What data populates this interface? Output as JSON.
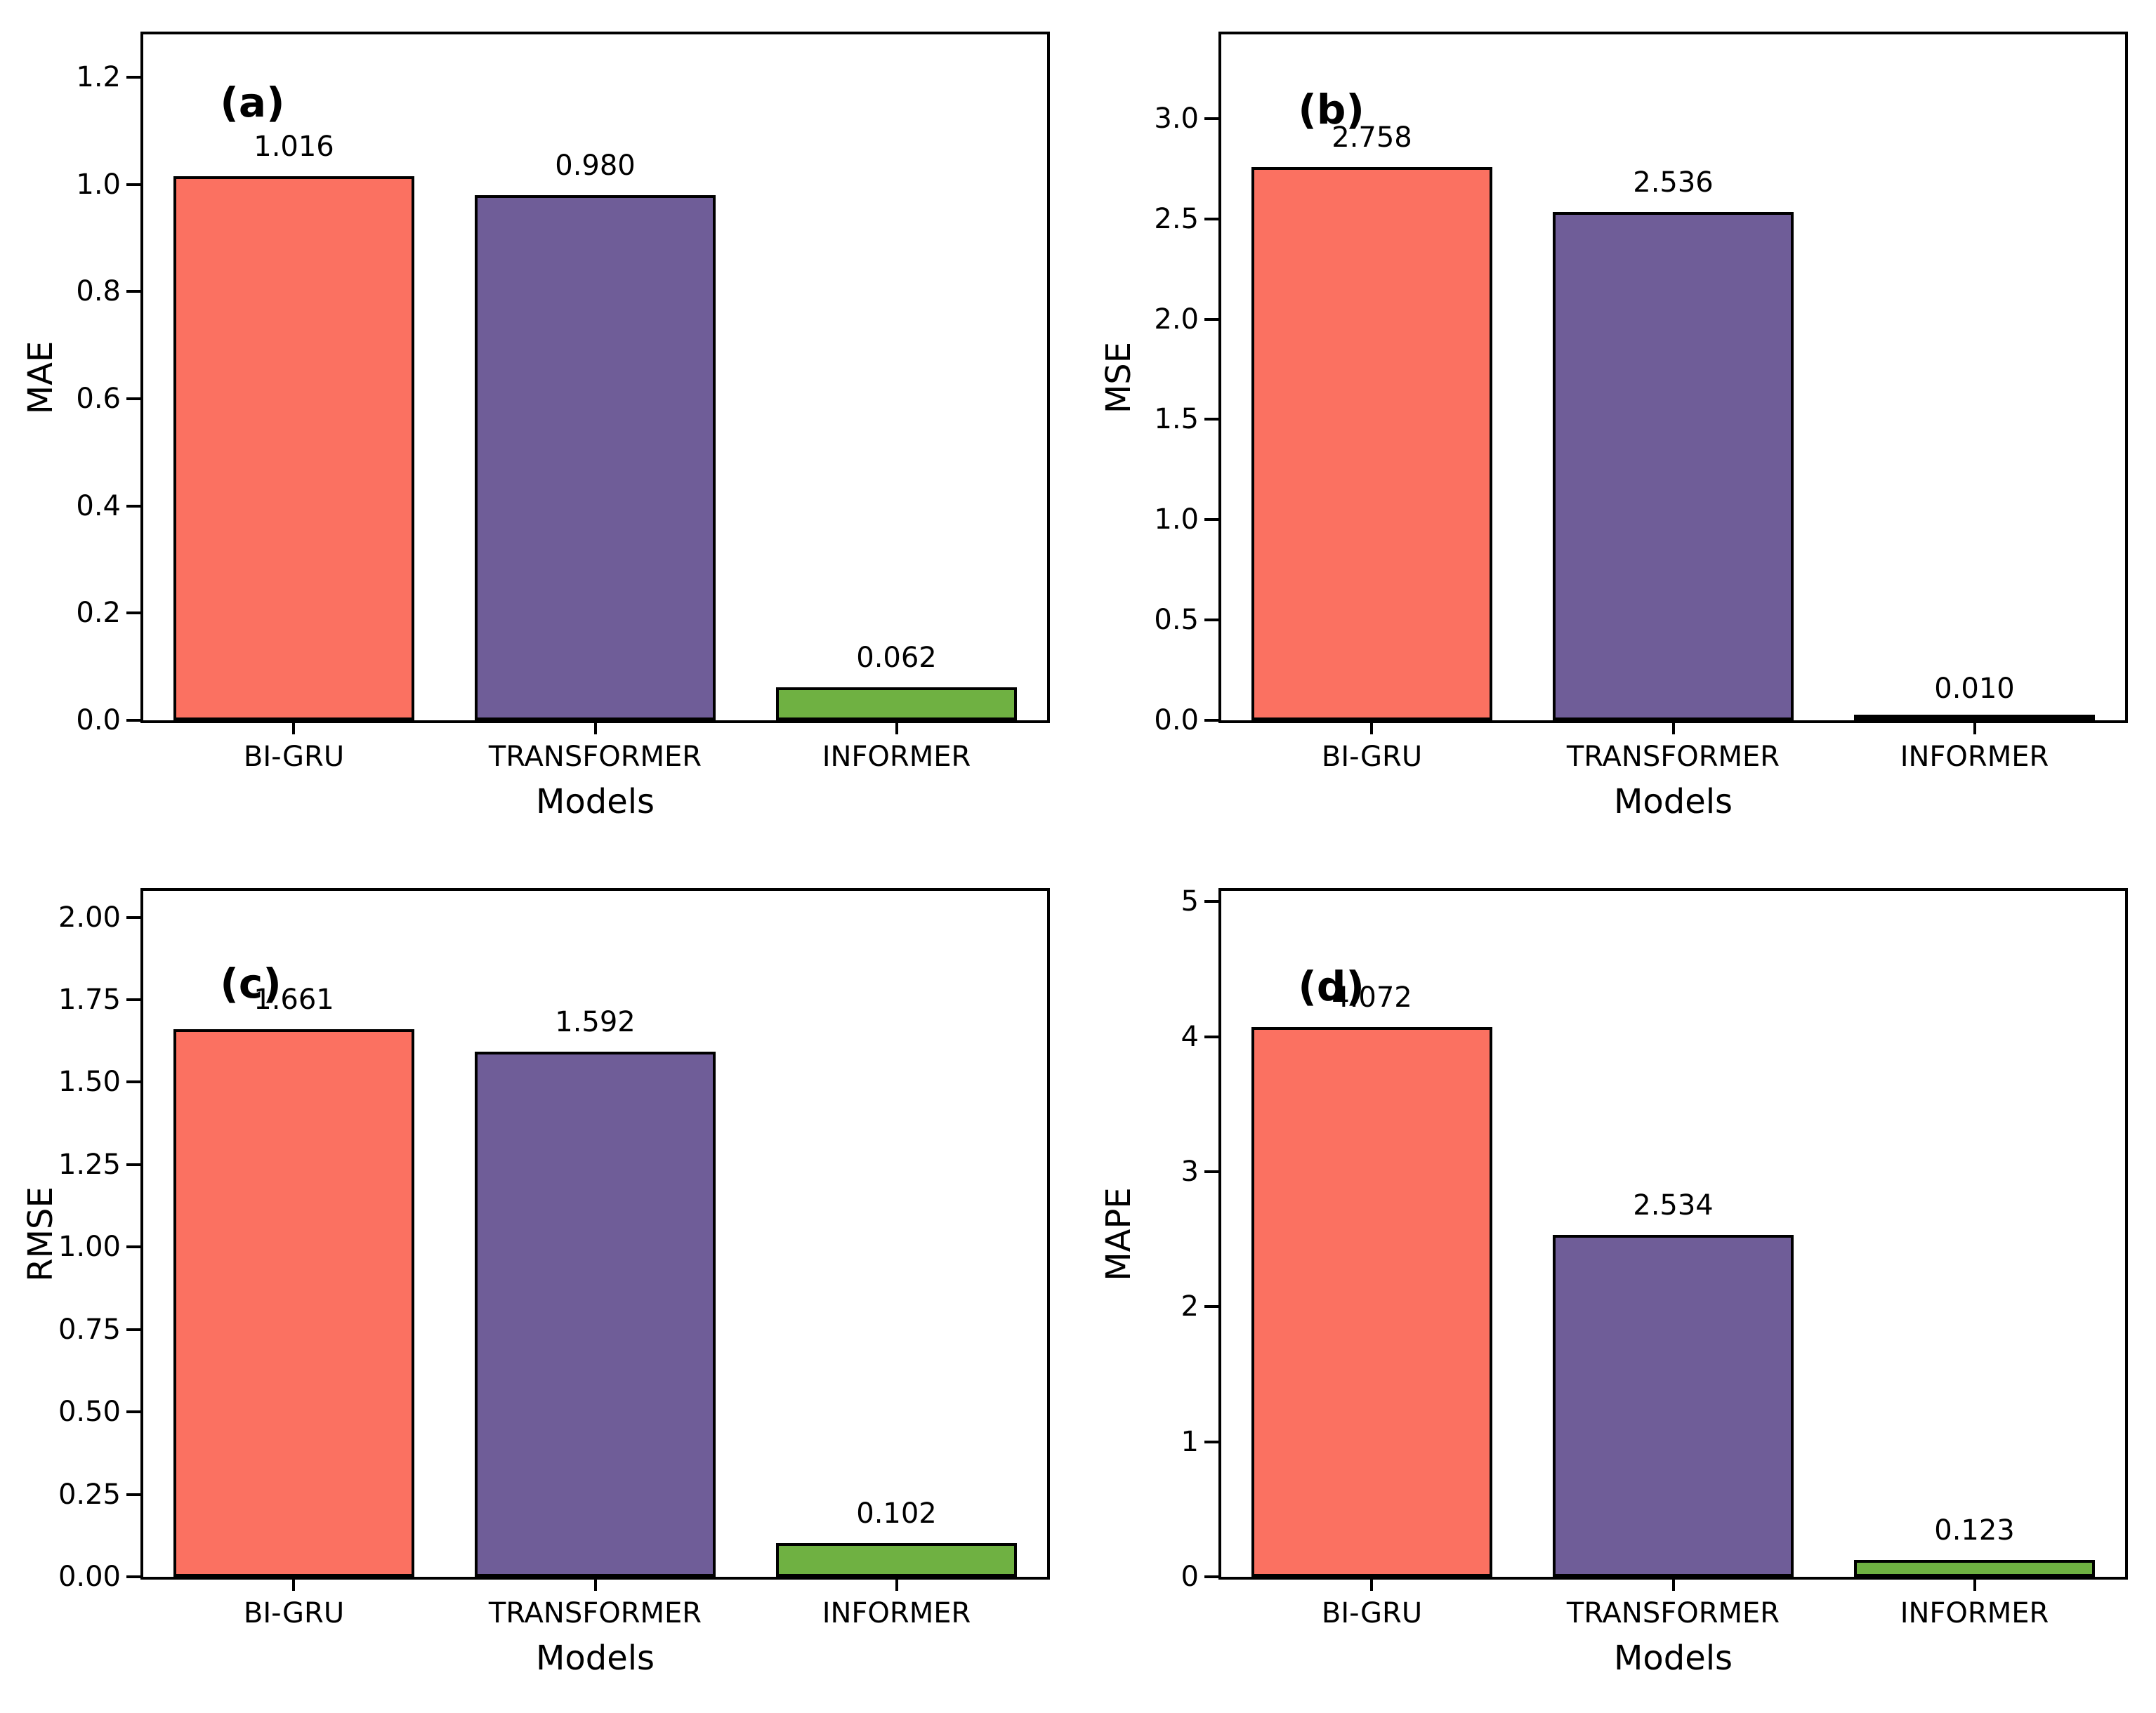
{
  "figure": {
    "background": "#ffffff",
    "description": "Model error metric comparison bar charts"
  },
  "colors": {
    "bi_gru_bar": "#FB7161",
    "transformer_bar": "#6F5D98",
    "informer_bar": "#6FB142",
    "bar_edge": "#000000",
    "text": "#000000"
  },
  "chart_data": [
    {
      "type": "bar",
      "panel_id": "a",
      "panel_label": "(a)",
      "ylabel": "MAE",
      "xlabel": "Models",
      "categories": [
        "BI-GRU",
        "TRANSFORMER",
        "INFORMER"
      ],
      "values": [
        1.016,
        0.98,
        0.062
      ],
      "value_labels": [
        "1.016",
        "0.980",
        "0.062"
      ],
      "bar_colors": [
        "#FB7161",
        "#6F5D98",
        "#6FB142"
      ],
      "ytick_labels": [
        "0.0",
        "0.2",
        "0.4",
        "0.6",
        "0.8",
        "1.0",
        "1.2"
      ],
      "ytick_values": [
        0.0,
        0.2,
        0.4,
        0.6,
        0.8,
        1.0,
        1.2
      ],
      "ylim": [
        0,
        1.28
      ],
      "grid": false,
      "legend": null,
      "annotation_pos": {
        "left_pct": 8.5,
        "top_pct": 7.0
      }
    },
    {
      "type": "bar",
      "panel_id": "b",
      "panel_label": "(b)",
      "ylabel": "MSE",
      "xlabel": "Models",
      "categories": [
        "BI-GRU",
        "TRANSFORMER",
        "INFORMER"
      ],
      "values": [
        2.758,
        2.536,
        0.01
      ],
      "value_labels": [
        "2.758",
        "2.536",
        "0.010"
      ],
      "bar_colors": [
        "#FB7161",
        "#6F5D98",
        "#6FB142"
      ],
      "ytick_labels": [
        "0.0",
        "0.5",
        "1.0",
        "1.5",
        "2.0",
        "2.5",
        "3.0"
      ],
      "ytick_values": [
        0.0,
        0.5,
        1.0,
        1.5,
        2.0,
        2.5,
        3.0
      ],
      "ylim": [
        0,
        3.42
      ],
      "grid": false,
      "legend": null,
      "annotation_pos": {
        "left_pct": 8.5,
        "top_pct": 8.0
      }
    },
    {
      "type": "bar",
      "panel_id": "c",
      "panel_label": "(c)",
      "ylabel": "RMSE",
      "xlabel": "Models",
      "categories": [
        "BI-GRU",
        "TRANSFORMER",
        "INFORMER"
      ],
      "values": [
        1.661,
        1.592,
        0.102
      ],
      "value_labels": [
        "1.661",
        "1.592",
        "0.102"
      ],
      "bar_colors": [
        "#FB7161",
        "#6F5D98",
        "#6FB142"
      ],
      "ytick_labels": [
        "0.00",
        "0.25",
        "0.50",
        "0.75",
        "1.00",
        "1.25",
        "1.50",
        "1.75",
        "2.00"
      ],
      "ytick_values": [
        0.0,
        0.25,
        0.5,
        0.75,
        1.0,
        1.25,
        1.5,
        1.75,
        2.0
      ],
      "ylim": [
        0,
        2.08
      ],
      "grid": false,
      "legend": null,
      "annotation_pos": {
        "left_pct": 8.5,
        "top_pct": 10.5
      }
    },
    {
      "type": "bar",
      "panel_id": "d",
      "panel_label": "(d)",
      "ylabel": "MAPE",
      "xlabel": "Models",
      "categories": [
        "BI-GRU",
        "TRANSFORMER",
        "INFORMER"
      ],
      "values": [
        4.072,
        2.534,
        0.123
      ],
      "value_labels": [
        "4.072",
        "2.534",
        "0.123"
      ],
      "bar_colors": [
        "#FB7161",
        "#6F5D98",
        "#6FB142"
      ],
      "ytick_labels": [
        "0",
        "1",
        "2",
        "3",
        "4",
        "5"
      ],
      "ytick_values": [
        0,
        1,
        2,
        3,
        4,
        5
      ],
      "ylim": [
        0,
        5.08
      ],
      "grid": false,
      "legend": null,
      "annotation_pos": {
        "left_pct": 8.5,
        "top_pct": 11.0
      }
    }
  ]
}
